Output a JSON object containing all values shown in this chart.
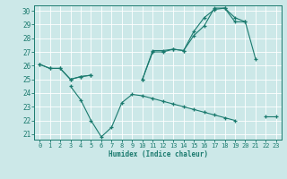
{
  "bg_color": "#cce8e8",
  "line_color": "#1a7a6e",
  "grid_color": "#ffffff",
  "xlabel": "Humidex (Indice chaleur)",
  "ylim": [
    21,
    30
  ],
  "xlim": [
    -0.5,
    23.5
  ],
  "yticks": [
    21,
    22,
    23,
    24,
    25,
    26,
    27,
    28,
    29,
    30
  ],
  "xticks": [
    0,
    1,
    2,
    3,
    4,
    5,
    6,
    7,
    8,
    9,
    10,
    11,
    12,
    13,
    14,
    15,
    16,
    17,
    18,
    19,
    20,
    21,
    22,
    23
  ],
  "y1": [
    26.1,
    25.8,
    25.8,
    25.0,
    25.2,
    25.3,
    null,
    null,
    null,
    null,
    25.0,
    27.0,
    27.0,
    27.2,
    27.1,
    28.5,
    29.5,
    30.1,
    30.2,
    29.5,
    29.2,
    26.5,
    null,
    null
  ],
  "y2": [
    26.1,
    25.8,
    25.8,
    25.0,
    25.2,
    25.3,
    null,
    null,
    null,
    null,
    25.0,
    27.1,
    27.1,
    27.2,
    27.1,
    28.2,
    28.9,
    30.2,
    30.2,
    29.2,
    29.2,
    null,
    null,
    null
  ],
  "y3": [
    null,
    null,
    null,
    24.5,
    23.5,
    22.0,
    20.8,
    21.5,
    23.3,
    23.9,
    23.8,
    23.6,
    23.4,
    23.2,
    23.0,
    22.8,
    22.6,
    22.4,
    22.2,
    22.0,
    null,
    null,
    22.3,
    22.3
  ]
}
